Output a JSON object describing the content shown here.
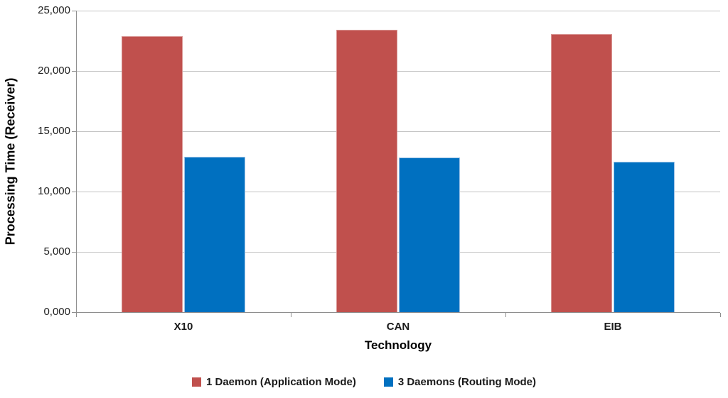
{
  "chart_data": {
    "type": "bar",
    "title": "",
    "categories": [
      "X10",
      "CAN",
      "EIB"
    ],
    "series": [
      {
        "name": "1 Daemon (Application Mode)",
        "color": "#C0504D",
        "edge_color": "#D99694",
        "values": [
          22900,
          23400,
          23050
        ]
      },
      {
        "name": "3 Daemons (Routing Mode)",
        "color": "#0070C0",
        "edge_color": "#9DC3E6",
        "values": [
          12900,
          12800,
          12500
        ]
      }
    ],
    "xlabel": "Technology",
    "ylabel": "Processing Time (Receiver)",
    "ylim": [
      0,
      25000
    ],
    "ytick_values": [
      0,
      5000,
      10000,
      15000,
      20000,
      25000
    ],
    "ytick_labels": [
      "0,000",
      "5,000",
      "10,000",
      "15,000",
      "20,000",
      "25,000"
    ],
    "grid": "horizontal gridlines on",
    "legend_position": "bottom center",
    "colors": {
      "gridline": "#C3C3C3",
      "axis_line": "#8E8E8E",
      "text": "#1A1A1A",
      "background": "#FFFFFF"
    }
  }
}
